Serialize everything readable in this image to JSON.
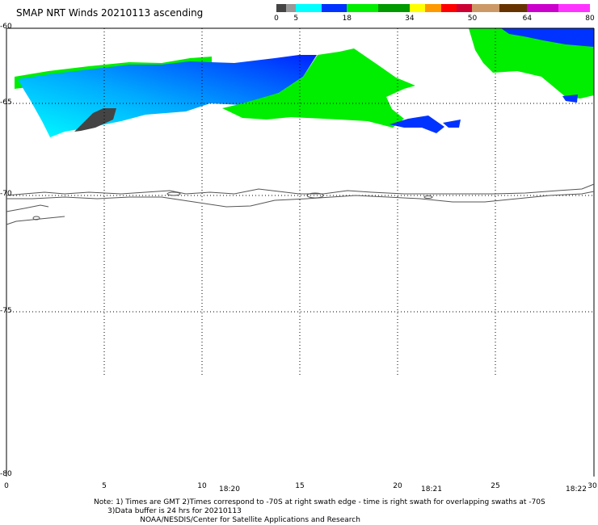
{
  "title": "SMAP NRT Winds 20210113 ascending",
  "legend": {
    "segments": [
      {
        "from": 0,
        "to": 5,
        "colors": [
          "#444444",
          "#999999"
        ]
      },
      {
        "from": 5,
        "to": 18,
        "colors": [
          "#00ffff",
          "#0033ff"
        ]
      },
      {
        "from": 18,
        "to": 34,
        "colors": [
          "#00ee00",
          "#009900"
        ]
      },
      {
        "from": 34,
        "to": 50,
        "colors": [
          "#ffff00",
          "#ff9900",
          "#ff0000",
          "#cc0033"
        ]
      },
      {
        "from": 50,
        "to": 64,
        "colors": [
          "#cc9966",
          "#663300"
        ]
      },
      {
        "from": 64,
        "to": 80,
        "colors": [
          "#cc00cc",
          "#ff33ff"
        ]
      }
    ],
    "labels": [
      "0",
      "5",
      "18",
      "34",
      "50",
      "64",
      "80"
    ]
  },
  "y_ticks": [
    "-60",
    "-65",
    "-70",
    "-75",
    "-80"
  ],
  "x_ticks": [
    "0",
    "5",
    "10",
    "15",
    "20",
    "25",
    "30"
  ],
  "times": [
    "18:20",
    "18:21",
    "18:22"
  ],
  "note_lines": [
    "Note: 1) Times are GMT 2)Times correspond to -70S at right swath edge - time is right swath for overlapping swaths at -70S",
    "      3)Data buffer is 24 hrs for 20210113",
    "                    NOAA/NESDIS/Center for Satellite Applications and Research"
  ],
  "colors": {
    "green": "#00ee00",
    "blue": "#0033ff",
    "cyan": "#00ddff",
    "dark": "#444444",
    "coast": "#555555",
    "grid": "#000000"
  }
}
